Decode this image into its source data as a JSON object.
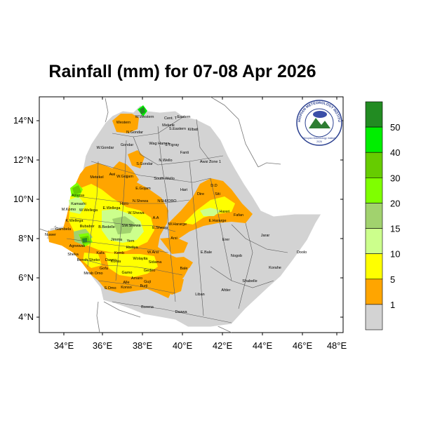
{
  "map": {
    "title": "Rainfall (mm) for 07-08 Apr 2026",
    "lon_ticks": [
      "34°E",
      "36°E",
      "38°E",
      "40°E",
      "42°E",
      "44°E",
      "46°E",
      "48°E"
    ],
    "lat_ticks": [
      "14°N",
      "12°N",
      "10°N",
      "8°N",
      "6°N",
      "4°N"
    ],
    "extent": {
      "lon": [
        33,
        48.2
      ],
      "lat": [
        3.2,
        15
      ]
    },
    "region_labels": [
      "W.Western",
      "Cent. T",
      "Eastern",
      "Mekele",
      "S.Eastern",
      "Kilbati",
      "Western",
      "N.Gondar",
      "Wag Hamra",
      "S.Tigray",
      "Gondar",
      "W.Gondar",
      "Fanti",
      "N.Wello",
      "Awsi Zone 1",
      "S.Gondar",
      "Metekel",
      "Awi",
      "W.Gojjam",
      "E.Gojam",
      "South Wello",
      "Hari",
      "Siti",
      "Assosa",
      "Kamashi",
      "Horo",
      "N.Shewa",
      "NSHI/ORO",
      "Dire",
      "D.D",
      "M.Komo",
      "W.Wellega",
      "E.Wellega",
      "W.Shewa",
      "Hareri",
      "Fafan",
      "K.Wellega",
      "Illubabor",
      "Gambela",
      "B.Bedelle",
      "SW.Shewa",
      "E.Shewa",
      "A.A",
      "W.Hararge",
      "E.Hararge",
      "Jimma",
      "Yem",
      "Arsi",
      "Erer",
      "Jarar",
      "Agnewak",
      "Kafa",
      "Hadiya",
      "Kemb",
      "E.Bale",
      "Nogob",
      "Doolo",
      "Nuwer",
      "Sheka",
      "Bench Sheko",
      "Dawro",
      "Wolayita",
      "W.Arsi",
      "Konta",
      "Gofa",
      "Sidama",
      "Bale",
      "Mirab Omo",
      "Gamo",
      "Gedeo",
      "Korahe",
      "S.Omo",
      "Amaro",
      "Guji",
      "Shabelle",
      "Alle",
      "Konso",
      "Burji",
      "Liban",
      "Afder",
      "Borena",
      "Daawa"
    ],
    "colors": {
      "no_rain": "#d3d3d3",
      "1-5": "#ffa500",
      "5-10": "#ffff00",
      "10-15": "#ccff8c",
      "15-20": "#a1d26e",
      "20-30": "#7fff00",
      "30-40": "#66cc00",
      "40-50": "#00ee00",
      "50+": "#228b22"
    }
  },
  "legend": {
    "labels": [
      "1",
      "5",
      "10",
      "15",
      "20",
      "30",
      "40",
      "50"
    ],
    "colors": [
      "#d3d3d3",
      "#ffa500",
      "#ffff00",
      "#ccff8c",
      "#a1d26e",
      "#7fff00",
      "#66cc00",
      "#00ee00",
      "#228b22"
    ]
  },
  "logo": {
    "arc_text": "ETHIOPIAN METEOROLOGY INSTITUTE",
    "sub_text": "Ethiopian Meteorology Institute",
    "year": "2026"
  }
}
